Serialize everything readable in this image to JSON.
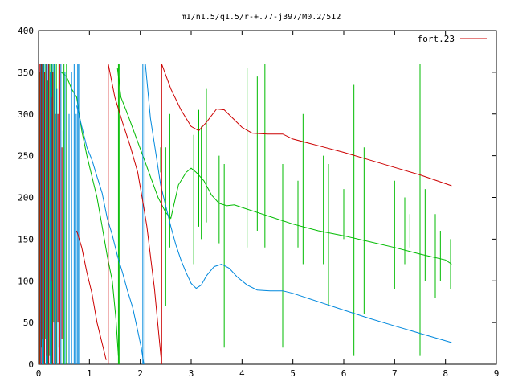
{
  "chart_data": {
    "type": "line",
    "title": "m1/n1.5/q1.5/r-+.77-j397/M0.2/512",
    "xlabel": "",
    "ylabel": "",
    "xlim": [
      0,
      9
    ],
    "ylim": [
      0,
      400
    ],
    "x_ticks": [
      0,
      1,
      2,
      3,
      4,
      5,
      6,
      7,
      8,
      9
    ],
    "y_ticks": [
      0,
      50,
      100,
      150,
      200,
      250,
      300,
      350,
      400
    ],
    "grid": false,
    "legend_position": "top-right",
    "colors": {
      "red": "#cc0000",
      "green": "#00bb00",
      "blue": "#0088dd",
      "axis": "#000000"
    },
    "series": [
      {
        "name": "fort.23",
        "color": "#cc0000",
        "segments": [
          [
            [
              1.37,
              0
            ],
            [
              1.37,
              360
            ],
            [
              1.5,
              320
            ],
            [
              1.65,
              290
            ],
            [
              1.8,
              262
            ],
            [
              1.95,
              230
            ],
            [
              2.05,
              195
            ],
            [
              2.13,
              165
            ],
            [
              2.2,
              130
            ],
            [
              2.28,
              90
            ],
            [
              2.35,
              45
            ],
            [
              2.42,
              0
            ],
            [
              2.42,
              360
            ],
            [
              2.6,
              330
            ],
            [
              2.8,
              305
            ],
            [
              3.0,
              285
            ],
            [
              3.15,
              280
            ],
            [
              3.3,
              290
            ],
            [
              3.5,
              306
            ],
            [
              3.65,
              305
            ],
            [
              3.85,
              293
            ],
            [
              4.0,
              284
            ],
            [
              4.2,
              277
            ],
            [
              4.5,
              276
            ],
            [
              4.8,
              276
            ],
            [
              5.0,
              270
            ],
            [
              5.5,
              262
            ],
            [
              6.0,
              254
            ],
            [
              6.5,
              245
            ],
            [
              7.0,
              236
            ],
            [
              7.5,
              227
            ],
            [
              8.12,
              214
            ]
          ]
        ],
        "spikes": [
          [
            0.02,
            0,
            360
          ],
          [
            0.05,
            0,
            360
          ],
          [
            0.08,
            30,
            360
          ],
          [
            0.12,
            0,
            350
          ],
          [
            0.16,
            10,
            360
          ],
          [
            0.2,
            0,
            360
          ],
          [
            0.25,
            100,
            320
          ],
          [
            0.28,
            0,
            350
          ],
          [
            0.33,
            0,
            300
          ],
          [
            0.38,
            50,
            300
          ],
          [
            0.42,
            0,
            360
          ],
          [
            0.46,
            30,
            260
          ]
        ],
        "extra": [
          [
            [
              0.75,
              160
            ],
            [
              0.85,
              140
            ],
            [
              0.95,
              110
            ],
            [
              1.05,
              85
            ],
            [
              1.15,
              50
            ],
            [
              1.25,
              25
            ],
            [
              1.33,
              5
            ]
          ]
        ]
      },
      {
        "name": "",
        "color": "#00bb00",
        "segments": [
          [
            [
              0.45,
              350
            ],
            [
              0.55,
              345
            ],
            [
              0.65,
              330
            ],
            [
              0.75,
              320
            ],
            [
              0.85,
              280
            ],
            [
              0.95,
              250
            ],
            [
              1.05,
              225
            ],
            [
              1.15,
              200
            ],
            [
              1.25,
              165
            ],
            [
              1.35,
              130
            ],
            [
              1.45,
              100
            ],
            [
              1.52,
              55
            ],
            [
              1.57,
              10
            ]
          ],
          [
            [
              1.55,
              355
            ],
            [
              1.62,
              320
            ],
            [
              1.75,
              300
            ],
            [
              1.9,
              275
            ],
            [
              2.05,
              250
            ],
            [
              2.2,
              225
            ],
            [
              2.35,
              200
            ],
            [
              2.5,
              182
            ],
            [
              2.6,
              175
            ],
            [
              2.75,
              215
            ],
            [
              2.9,
              230
            ],
            [
              3.0,
              235
            ],
            [
              3.1,
              230
            ],
            [
              3.25,
              220
            ],
            [
              3.4,
              203
            ],
            [
              3.55,
              193
            ],
            [
              3.7,
              190
            ],
            [
              3.85,
              191
            ],
            [
              4.0,
              188
            ],
            [
              4.3,
              182
            ],
            [
              4.6,
              176
            ],
            [
              5.0,
              168
            ],
            [
              5.5,
              160
            ],
            [
              6.0,
              154
            ],
            [
              6.5,
              147
            ],
            [
              7.0,
              140
            ],
            [
              7.5,
              132
            ],
            [
              8.0,
              125
            ],
            [
              8.12,
              120
            ]
          ]
        ],
        "spikes": [
          [
            0.03,
            0,
            350
          ],
          [
            0.06,
            20,
            360
          ],
          [
            0.1,
            0,
            360
          ],
          [
            0.14,
            30,
            360
          ],
          [
            0.18,
            0,
            340
          ],
          [
            0.22,
            10,
            360
          ],
          [
            0.26,
            0,
            360
          ],
          [
            0.3,
            50,
            360
          ],
          [
            0.35,
            0,
            360
          ],
          [
            0.4,
            20,
            360
          ],
          [
            0.5,
            0,
            360
          ],
          [
            0.55,
            0,
            360
          ],
          [
            1.57,
            0,
            360
          ],
          [
            1.59,
            0,
            360
          ],
          [
            2.4,
            230,
            260
          ],
          [
            2.5,
            70,
            260
          ],
          [
            2.58,
            140,
            300
          ],
          [
            3.05,
            120,
            275
          ],
          [
            3.15,
            165,
            305
          ],
          [
            3.2,
            150,
            285
          ],
          [
            3.3,
            170,
            330
          ],
          [
            3.55,
            145,
            250
          ],
          [
            3.65,
            20,
            240
          ],
          [
            4.1,
            140,
            355
          ],
          [
            4.3,
            160,
            345
          ],
          [
            4.45,
            140,
            360
          ],
          [
            4.8,
            20,
            240
          ],
          [
            5.1,
            140,
            220
          ],
          [
            5.2,
            120,
            300
          ],
          [
            5.6,
            120,
            250
          ],
          [
            5.7,
            70,
            240
          ],
          [
            6.0,
            150,
            210
          ],
          [
            6.2,
            10,
            335
          ],
          [
            6.4,
            60,
            260
          ],
          [
            7.0,
            90,
            220
          ],
          [
            7.2,
            120,
            200
          ],
          [
            7.3,
            140,
            180
          ],
          [
            7.5,
            10,
            360
          ],
          [
            7.6,
            100,
            210
          ],
          [
            7.8,
            80,
            180
          ],
          [
            7.9,
            100,
            160
          ],
          [
            8.1,
            90,
            150
          ]
        ]
      },
      {
        "name": "",
        "color": "#0088dd",
        "segments": [
          [
            [
              0.75,
              310
            ],
            [
              0.85,
              285
            ],
            [
              0.95,
              260
            ],
            [
              1.05,
              245
            ],
            [
              1.15,
              225
            ],
            [
              1.25,
              205
            ],
            [
              1.35,
              175
            ],
            [
              1.45,
              155
            ],
            [
              1.55,
              130
            ],
            [
              1.65,
              110
            ],
            [
              1.75,
              88
            ],
            [
              1.85,
              68
            ],
            [
              1.95,
              40
            ],
            [
              2.02,
              20
            ],
            [
              2.07,
              0
            ]
          ],
          [
            [
              2.1,
              360
            ],
            [
              2.2,
              295
            ],
            [
              2.3,
              255
            ],
            [
              2.4,
              215
            ],
            [
              2.5,
              190
            ],
            [
              2.6,
              165
            ],
            [
              2.7,
              143
            ],
            [
              2.8,
              125
            ],
            [
              2.9,
              110
            ],
            [
              3.0,
              97
            ],
            [
              3.1,
              91
            ],
            [
              3.2,
              95
            ],
            [
              3.3,
              106
            ],
            [
              3.45,
              117
            ],
            [
              3.6,
              120
            ],
            [
              3.75,
              115
            ],
            [
              3.9,
              105
            ],
            [
              4.1,
              95
            ],
            [
              4.3,
              89
            ],
            [
              4.55,
              88
            ],
            [
              4.8,
              88
            ],
            [
              5.0,
              85
            ],
            [
              5.5,
              75
            ],
            [
              6.0,
              65
            ],
            [
              6.5,
              55
            ],
            [
              7.0,
              46
            ],
            [
              7.5,
              37
            ],
            [
              8.12,
              26
            ]
          ]
        ],
        "spikes": [
          [
            0.0,
            0,
            350
          ],
          [
            0.04,
            0,
            360
          ],
          [
            0.07,
            0,
            360
          ],
          [
            0.11,
            0,
            360
          ],
          [
            0.15,
            0,
            360
          ],
          [
            0.19,
            0,
            360
          ],
          [
            0.23,
            0,
            350
          ],
          [
            0.27,
            0,
            360
          ],
          [
            0.31,
            0,
            360
          ],
          [
            0.36,
            0,
            330
          ],
          [
            0.4,
            0,
            300
          ],
          [
            0.44,
            0,
            360
          ],
          [
            0.48,
            0,
            280
          ],
          [
            0.52,
            0,
            350
          ],
          [
            0.56,
            0,
            360
          ],
          [
            0.6,
            0,
            300
          ],
          [
            0.65,
            0,
            350
          ],
          [
            0.7,
            0,
            360
          ],
          [
            0.74,
            0,
            300
          ],
          [
            0.77,
            0,
            360
          ],
          [
            0.79,
            0,
            360
          ],
          [
            2.05,
            0,
            360
          ],
          [
            2.09,
            0,
            360
          ]
        ]
      }
    ]
  }
}
